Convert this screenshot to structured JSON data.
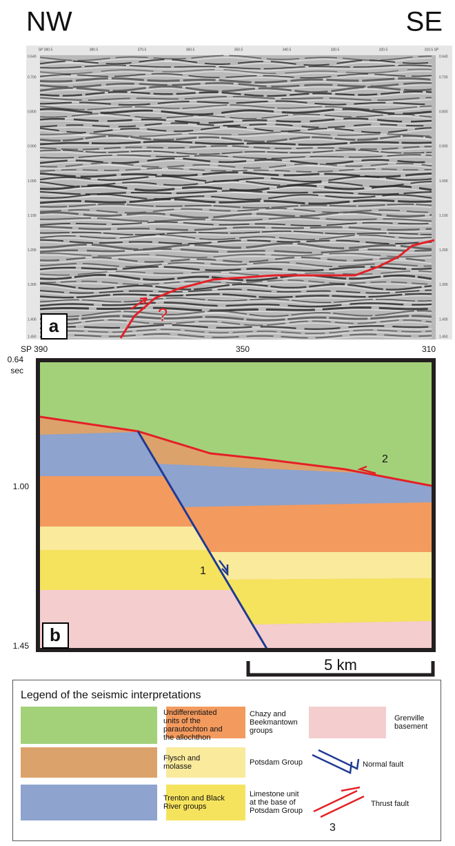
{
  "header": {
    "left": "NW",
    "right": "SE"
  },
  "panel_a": {
    "label": "a",
    "top_axis": [
      "SP 390.5",
      "380.5",
      "370.5",
      "360.5",
      "350.5",
      "340.5",
      "330.5",
      "320.5",
      "310.5 SP"
    ],
    "left_axis": [
      "0.640",
      "0.700",
      "0.800",
      "0.900",
      "1.000",
      "1.100",
      "1.200",
      "1.300",
      "1.400",
      "1.450"
    ],
    "right_axis": [
      "0.640",
      "0.700",
      "0.800",
      "0.900",
      "1.000",
      "1.100",
      "1.200",
      "1.300",
      "1.400",
      "1.450"
    ],
    "annotation": "?"
  },
  "panel_b": {
    "label": "b",
    "shotpoints": [
      "SP 390",
      "350",
      "310"
    ],
    "time_labels": [
      "0.64",
      "1.00",
      "1.45"
    ],
    "time_unit": "sec",
    "fault_labels": [
      "1",
      "2"
    ],
    "scale_bar": "5 km"
  },
  "legend": {
    "title": "Legend of the seismic interpretations",
    "items": [
      {
        "lines": [
          "Undifferentiated",
          "units of the",
          "parautochton and",
          "the allochthon"
        ]
      },
      {
        "lines": [
          "Chazy and",
          "Beekmantown",
          "groups"
        ]
      },
      {
        "lines": [
          "Grenville",
          "basement"
        ]
      },
      {
        "lines": [
          "Flysch and",
          "molasse"
        ]
      },
      {
        "lines": [
          "Potsdam Group"
        ]
      },
      {
        "lines": [
          "Normal fault"
        ]
      },
      {
        "lines": [
          "Trenton and Black",
          "River groups"
        ]
      },
      {
        "lines": [
          "Limestone unit",
          "at the base of",
          "Potsdam Group"
        ]
      },
      {
        "lines": [
          "Thrust fault"
        ]
      }
    ],
    "thrust_number": "3"
  }
}
